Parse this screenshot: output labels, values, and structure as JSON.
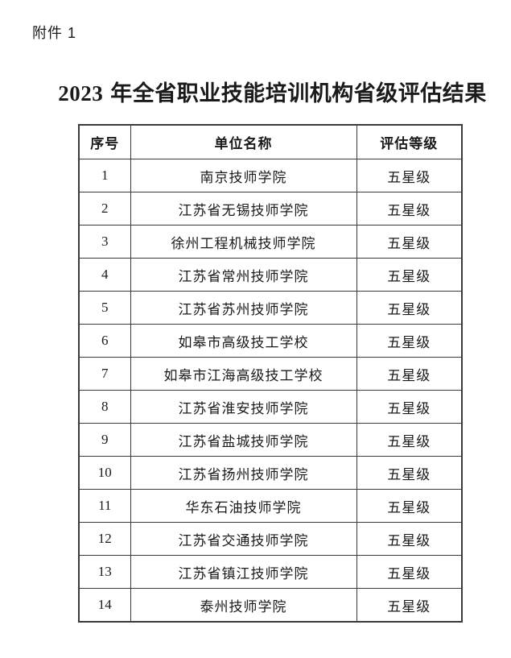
{
  "page": {
    "attachment_label": "附件 1",
    "title_year": "2023",
    "title_text": "年全省职业技能培训机构省级评估结果",
    "background": "#ffffff",
    "text_color": "#1a1a1a",
    "border_color": "#3a3a3a"
  },
  "table": {
    "headers": [
      "序号",
      "单位名称",
      "评估等级"
    ],
    "rows": [
      {
        "no": "1",
        "name": "南京技师学院",
        "grade": "五星级"
      },
      {
        "no": "2",
        "name": "江苏省无锡技师学院",
        "grade": "五星级"
      },
      {
        "no": "3",
        "name": "徐州工程机械技师学院",
        "grade": "五星级"
      },
      {
        "no": "4",
        "name": "江苏省常州技师学院",
        "grade": "五星级"
      },
      {
        "no": "5",
        "name": "江苏省苏州技师学院",
        "grade": "五星级"
      },
      {
        "no": "6",
        "name": "如皋市高级技工学校",
        "grade": "五星级"
      },
      {
        "no": "7",
        "name": "如皋市江海高级技工学校",
        "grade": "五星级"
      },
      {
        "no": "8",
        "name": "江苏省淮安技师学院",
        "grade": "五星级"
      },
      {
        "no": "9",
        "name": "江苏省盐城技师学院",
        "grade": "五星级"
      },
      {
        "no": "10",
        "name": "江苏省扬州技师学院",
        "grade": "五星级"
      },
      {
        "no": "11",
        "name": "华东石油技师学院",
        "grade": "五星级"
      },
      {
        "no": "12",
        "name": "江苏省交通技师学院",
        "grade": "五星级"
      },
      {
        "no": "13",
        "name": "江苏省镇江技师学院",
        "grade": "五星级"
      },
      {
        "no": "14",
        "name": "泰州技师学院",
        "grade": "五星级"
      }
    ]
  }
}
